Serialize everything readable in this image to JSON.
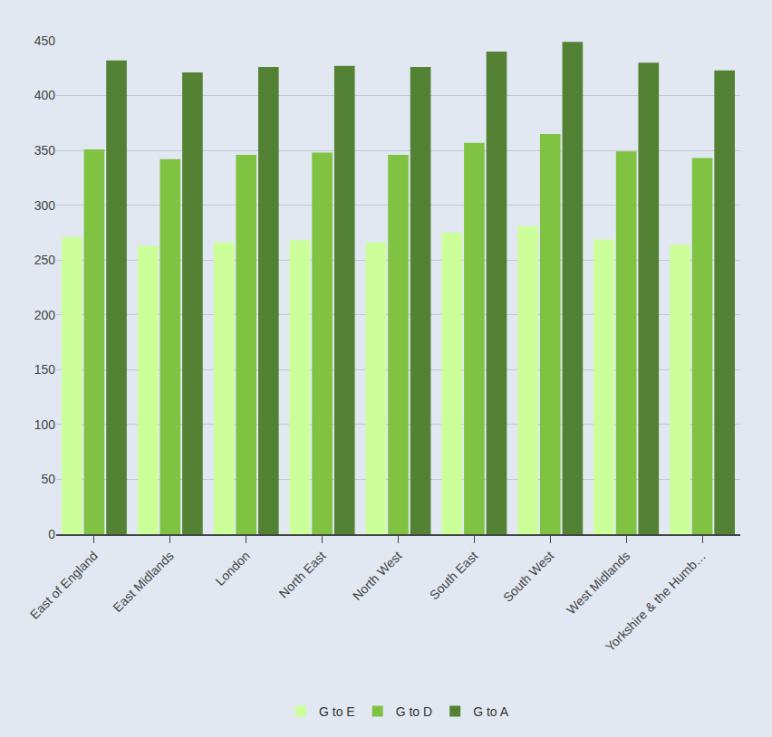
{
  "chart_data": {
    "type": "bar",
    "categories": [
      "East of England",
      "East Midlands",
      "London",
      "North East",
      "North West",
      "South East",
      "South West",
      "West Midlands",
      "Yorkshire & the Humb…"
    ],
    "series": [
      {
        "name": "G to E",
        "color": "#ccff99",
        "values": [
          271,
          263,
          266,
          268,
          266,
          275,
          281,
          269,
          264
        ]
      },
      {
        "name": "G to D",
        "color": "#80c342",
        "values": [
          351,
          342,
          346,
          348,
          346,
          357,
          365,
          349,
          343
        ]
      },
      {
        "name": "G to A",
        "color": "#548235",
        "values": [
          432,
          421,
          426,
          427,
          426,
          440,
          449,
          430,
          423
        ]
      }
    ],
    "ylim": [
      0,
      450
    ],
    "yticks": [
      0,
      50,
      100,
      150,
      200,
      250,
      300,
      350,
      400,
      450
    ],
    "grid": true,
    "legend": "bottom"
  }
}
